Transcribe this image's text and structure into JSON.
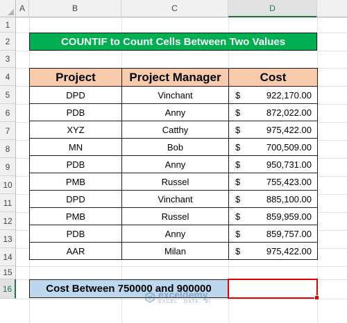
{
  "columns": [
    "A",
    "B",
    "C",
    "D"
  ],
  "active_column": "D",
  "rows": [
    "1",
    "2",
    "3",
    "4",
    "5",
    "6",
    "7",
    "8",
    "9",
    "10",
    "11",
    "12",
    "13",
    "14",
    "15",
    "16"
  ],
  "active_row": "16",
  "title": "COUNTIF to Count Cells Between Two Values",
  "table": {
    "headers": [
      "Project",
      "Project Manager",
      "Cost"
    ],
    "currency_symbol": "$",
    "rows": [
      {
        "project": "DPD",
        "manager": "Vinchant",
        "cost": "922,170.00"
      },
      {
        "project": "PDB",
        "manager": "Anny",
        "cost": "872,022.00"
      },
      {
        "project": "XYZ",
        "manager": "Catthy",
        "cost": "975,422.00"
      },
      {
        "project": "MN",
        "manager": "Bob",
        "cost": "700,509.00"
      },
      {
        "project": "PDB",
        "manager": "Anny",
        "cost": "950,731.00"
      },
      {
        "project": "PMB",
        "manager": "Russel",
        "cost": "755,423.00"
      },
      {
        "project": "DPD",
        "manager": "Vinchant",
        "cost": "885,100.00"
      },
      {
        "project": "PMB",
        "manager": "Russel",
        "cost": "859,959.00"
      },
      {
        "project": "PDB",
        "manager": "Anny",
        "cost": "859,757.00"
      },
      {
        "project": "AAR",
        "manager": "Milan",
        "cost": "975,422.00"
      }
    ]
  },
  "summary": {
    "label": "Cost Between 750000 and 900000",
    "value": ""
  },
  "watermark": {
    "name": "exceldemy",
    "tagline": "EXCEL · DATA · BI",
    "icon": "exceldemy-logo-icon"
  },
  "colors": {
    "title_bg": "#00b050",
    "header_bg": "#f8cbad",
    "summary_bg": "#bdd7ee",
    "selection_border": "#e00000",
    "excel_green": "#217346"
  }
}
